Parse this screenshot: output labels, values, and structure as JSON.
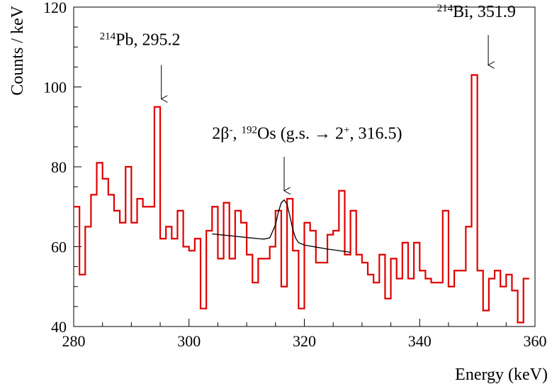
{
  "chart_data": {
    "type": "line",
    "xlabel": "Energy (keV)",
    "ylabel": "Counts / keV",
    "xlim": [
      280,
      360
    ],
    "ylim": [
      40,
      120
    ],
    "x_ticks": [
      280,
      300,
      320,
      340,
      360
    ],
    "y_ticks": [
      40,
      60,
      80,
      100,
      120
    ],
    "grid": false,
    "series": [
      {
        "style": "histogram-step",
        "color": "#e00000",
        "bin_width": 1,
        "x_start": 280,
        "values": [
          70,
          53,
          65,
          73,
          81,
          77,
          73,
          69,
          66,
          80,
          66,
          72,
          70,
          70,
          95,
          62,
          65,
          62,
          69,
          60,
          59,
          62,
          44.5,
          64,
          70,
          57,
          71,
          57,
          69,
          66,
          58,
          51,
          57,
          57,
          60,
          69,
          50,
          72,
          59,
          44.5,
          66,
          64,
          56,
          56,
          63,
          64,
          74,
          58,
          69,
          58,
          56,
          53,
          51,
          58,
          47,
          57,
          52,
          61,
          52,
          61,
          54,
          52,
          51,
          51,
          69,
          50,
          54,
          54,
          65,
          103,
          54,
          44,
          52,
          54,
          50,
          53,
          49,
          41,
          52
        ]
      },
      {
        "style": "fit-curve",
        "color": "#000000",
        "x": [
          304.0,
          306.0,
          308.0,
          310.0,
          312.0,
          313.0,
          314.0,
          315.0,
          315.5,
          316.0,
          316.5,
          317.0,
          317.5,
          318.0,
          318.5,
          319.0,
          320.0,
          322.0,
          324.0,
          326.0,
          328.0
        ],
        "y": [
          63.2,
          62.9,
          62.6,
          62.3,
          62.0,
          61.9,
          62.2,
          65.5,
          68.7,
          71.0,
          71.7,
          70.6,
          67.6,
          64.3,
          62.1,
          61.0,
          60.4,
          59.9,
          59.4,
          59.0,
          58.6
        ]
      }
    ],
    "annotations": [
      {
        "id": "pb",
        "label_sup": "214",
        "label_main": "Pb, 295.2",
        "arrow_x": 295.2,
        "arrow_y_from": 105.5,
        "arrow_y_to": 97.0,
        "text_x": 284.5,
        "text_y": 110.5
      },
      {
        "id": "os",
        "label_main": "2β",
        "label_sup_a": "-",
        "label_mid": ", ",
        "label_sup_b": "192",
        "label_tail": "Os (g.s. → 2",
        "label_sup_c": "+",
        "label_end": ", 316.5)",
        "arrow_x": 316.5,
        "arrow_y_from": 82.5,
        "arrow_y_to": 74.0,
        "text_x": 304.0,
        "text_y": 87.0
      },
      {
        "id": "bi",
        "label_sup": "214",
        "label_main": "Bi, 351.9",
        "arrow_x": 351.9,
        "arrow_y_from": 113.0,
        "arrow_y_to": 105.5,
        "text_x": 343.0,
        "text_y": 117.5
      }
    ]
  }
}
